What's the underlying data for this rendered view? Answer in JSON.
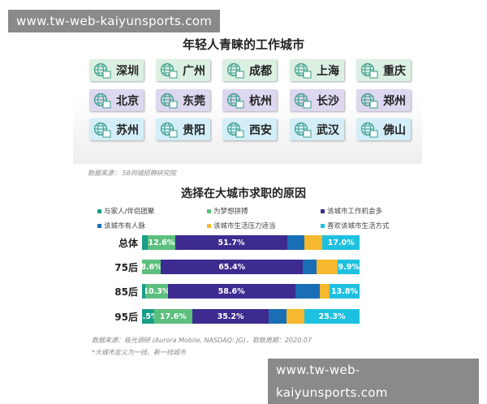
{
  "watermark_top": "www.tw-web-kaiyunsports.com",
  "watermark_bottom": "www.tw-web-kaiyunsports.com",
  "cities_title": "年轻人青睐的工作城市",
  "cities": [
    [
      "深圳",
      "广州",
      "成都",
      "上海",
      "重庆"
    ],
    [
      "北京",
      "东莞",
      "杭州",
      "长沙",
      "郑州"
    ],
    [
      "苏州",
      "贵阳",
      "西安",
      "武汉",
      "佛山"
    ]
  ],
  "city_row_colors": [
    "#dcefe3",
    "#ddd7ef",
    "#d3eef8"
  ],
  "cities_source": "数据来源： 58同城招聘研究院",
  "chart_data": {
    "type": "bar",
    "orientation": "horizontal",
    "stacked": true,
    "title": "选择在大城市求职的原因",
    "categories": [
      "总体",
      "75后",
      "85后",
      "95后"
    ],
    "series": [
      {
        "name": "与家人/伴侣团聚",
        "color": "#1a9e8a",
        "values": [
          2.6,
          0,
          1.5,
          5.5
        ],
        "labels": [
          "",
          "",
          "",
          "5.5%"
        ]
      },
      {
        "name": "为梦想拼搏",
        "color": "#5cbf7d",
        "values": [
          12.6,
          8.6,
          10.3,
          17.6
        ],
        "labels": [
          "12.6%",
          "8.6%",
          "10.3%",
          "17.6%"
        ]
      },
      {
        "name": "该城市工作机会多",
        "color": "#3d2b8f",
        "values": [
          51.7,
          65.4,
          58.6,
          35.2
        ],
        "labels": [
          "51.7%",
          "65.4%",
          "58.6%",
          "35.2%"
        ]
      },
      {
        "name": "该城市有人脉",
        "color": "#1a6eb5",
        "values": [
          7.9,
          6.3,
          11.5,
          8.2
        ],
        "labels": [
          "",
          "",
          "",
          ""
        ]
      },
      {
        "name": "该城市生活压力适当",
        "color": "#f5b82e",
        "values": [
          8.2,
          9.8,
          4.3,
          8.2
        ],
        "labels": [
          "",
          "",
          "",
          ""
        ]
      },
      {
        "name": "喜欢该城市生活方式",
        "color": "#1ec0e0",
        "values": [
          17.0,
          9.9,
          13.8,
          25.3
        ],
        "labels": [
          "17.0%",
          "9.9%",
          "13.8%",
          "25.3%"
        ]
      }
    ],
    "legend": "top",
    "xlim": [
      0,
      100
    ]
  },
  "chart_source": "数据来源：极光调研 (Aurora Mobile, NASDAQ: JG)，取数周期：2020.07",
  "chart_note": "*大城市定义为一线、新一线城市"
}
